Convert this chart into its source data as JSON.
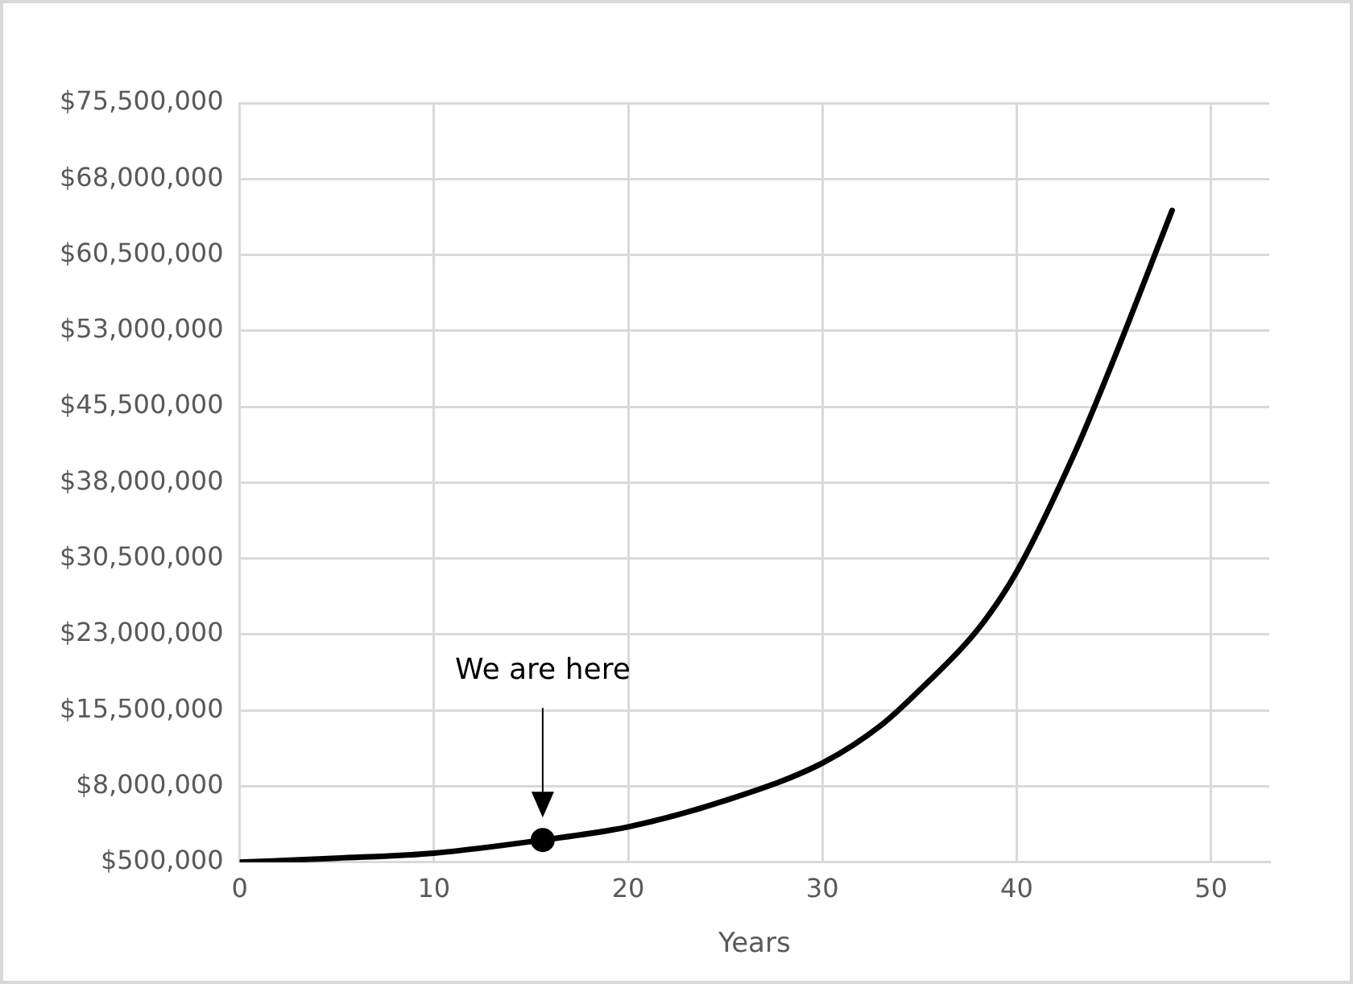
{
  "chart_data": {
    "type": "line",
    "xlabel": "Years",
    "xlim": [
      0,
      53
    ],
    "xticks": [
      0,
      10,
      20,
      30,
      40,
      50
    ],
    "ylim": [
      500000,
      75500000
    ],
    "yticks": [
      {
        "value": 500000,
        "label": "$500,000"
      },
      {
        "value": 8000000,
        "label": "$8,000,000"
      },
      {
        "value": 15500000,
        "label": "$15,500,000"
      },
      {
        "value": 23000000,
        "label": "$23,000,000"
      },
      {
        "value": 30500000,
        "label": "$30,500,000"
      },
      {
        "value": 38000000,
        "label": "$38,000,000"
      },
      {
        "value": 45500000,
        "label": "$45,500,000"
      },
      {
        "value": 53000000,
        "label": "$53,000,000"
      },
      {
        "value": 60500000,
        "label": "$60,500,000"
      },
      {
        "value": 68000000,
        "label": "$68,000,000"
      },
      {
        "value": 75500000,
        "label": "$75,500,000"
      }
    ],
    "grid": true,
    "legend": false,
    "line_style": "solid",
    "series": [
      {
        "color": "#000000",
        "marker": "none",
        "x": [
          0,
          5,
          10,
          15.6,
          20,
          25,
          30,
          33,
          35,
          38,
          40,
          43,
          45,
          48
        ],
        "values": [
          500000,
          900000,
          1400000,
          2700000,
          4000000,
          6600000,
          10300000,
          14000000,
          17500000,
          23500000,
          29200000,
          41000000,
          50200000,
          64900000
        ]
      },
      {
        "type": "scatter",
        "color": "#000000",
        "marker": "circle",
        "x": [
          15.6
        ],
        "values": [
          2700000
        ]
      }
    ],
    "annotations": [
      "We are here"
    ]
  }
}
